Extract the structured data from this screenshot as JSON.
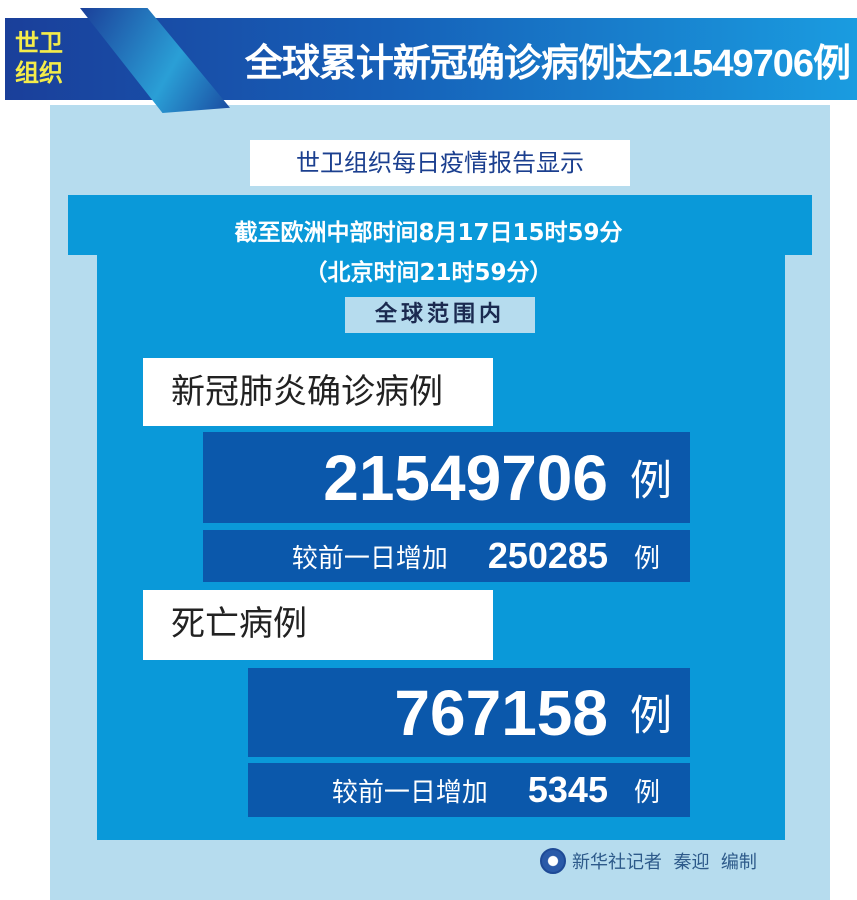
{
  "header": {
    "badge_line1": "世卫",
    "badge_line2": "组织",
    "title": "全球累计新冠确诊病例达21549706例"
  },
  "subtitle": "世卫组织每日疫情报告显示",
  "time": {
    "line1": "截至欧洲中部时间8月17日15时59分",
    "line2": "（北京时间21时59分）",
    "scope": "全球范围内"
  },
  "confirmed": {
    "label": "新冠肺炎确诊病例",
    "total": "21549706",
    "unit": "例",
    "increase_label": "较前一日增加",
    "increase": "250285",
    "increase_unit": "例"
  },
  "deaths": {
    "label": "死亡病例",
    "total": "767158",
    "unit": "例",
    "increase_label": "较前一日增加",
    "increase": "5345",
    "increase_unit": "例"
  },
  "credit": {
    "logo": "xinhua-logo-icon",
    "text": "新华社记者  秦迎  编制"
  },
  "colors": {
    "light_panel": "#b6dcee",
    "mid_blue": "#0a99d9",
    "dark_blue": "#0b58ab",
    "badge_yellow": "#f4ec4a"
  }
}
